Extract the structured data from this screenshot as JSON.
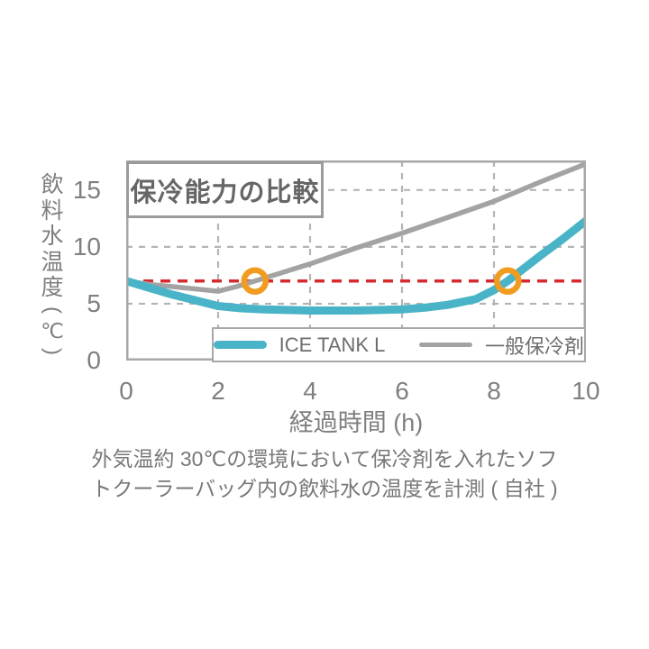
{
  "chart_data": {
    "type": "line",
    "title": "保冷能力の比較",
    "x_axis": {
      "label": "経過時間 (h)",
      "ticks": [
        0,
        2,
        4,
        6,
        8,
        10
      ],
      "range": [
        0,
        10
      ]
    },
    "y_axis": {
      "label": "飲料水温度(℃)",
      "ticks": [
        0,
        5,
        10,
        15
      ],
      "range": [
        0,
        17.6
      ]
    },
    "grid": true,
    "threshold_line": {
      "y": 7,
      "color": "#d8292f",
      "style": "dashed"
    },
    "series": [
      {
        "name": "ICE TANK L",
        "color": "#49b3c7",
        "points": [
          [
            0,
            7.0
          ],
          [
            0.5,
            6.4
          ],
          [
            1,
            5.8
          ],
          [
            1.5,
            5.3
          ],
          [
            2,
            4.8
          ],
          [
            2.5,
            4.6
          ],
          [
            3,
            4.5
          ],
          [
            4,
            4.4
          ],
          [
            5,
            4.4
          ],
          [
            6,
            4.5
          ],
          [
            6.5,
            4.65
          ],
          [
            7,
            4.9
          ],
          [
            7.6,
            5.4
          ],
          [
            8,
            6.2
          ],
          [
            8.3,
            7.0
          ],
          [
            9,
            9.2
          ],
          [
            9.5,
            10.7
          ],
          [
            10,
            12.3
          ]
        ]
      },
      {
        "name": "一般保冷剤",
        "color": "#a3a3a3",
        "points": [
          [
            0,
            7.0
          ],
          [
            0.5,
            6.7
          ],
          [
            1,
            6.5
          ],
          [
            1.5,
            6.3
          ],
          [
            2,
            6.1
          ],
          [
            2.4,
            6.5
          ],
          [
            2.8,
            7.0
          ],
          [
            3,
            7.25
          ],
          [
            4,
            8.5
          ],
          [
            5,
            9.9
          ],
          [
            6,
            11.2
          ],
          [
            7,
            12.6
          ],
          [
            8,
            14.0
          ],
          [
            9,
            15.7
          ],
          [
            10,
            17.3
          ]
        ]
      }
    ],
    "markers": [
      {
        "x": 2.8,
        "y": 7,
        "shape": "ring",
        "color": "#f09c20"
      },
      {
        "x": 8.3,
        "y": 7,
        "shape": "ring",
        "color": "#f09c20"
      }
    ],
    "legend": {
      "position": "bottom-inside",
      "entries": [
        "ICE TANK L",
        "一般保冷剤"
      ]
    }
  },
  "caption": {
    "line1": "外気温約 30℃の環境において保冷剤を入れたソフ",
    "line2": "トクーラーバッグ内の飲料水の温度を計測 ( 自社 )"
  },
  "colors": {
    "grid": "#b4b4b4",
    "plot_border": "#a8a8a8",
    "tick_text": "#7f7f7f",
    "title_text": "#666666",
    "legend_text": "#6e6e6e",
    "threshold_red": "#d8292f",
    "marker_orange": "#f09c20",
    "ice_tank_teal": "#49b3c7",
    "generic_gray": "#a3a3a3"
  }
}
